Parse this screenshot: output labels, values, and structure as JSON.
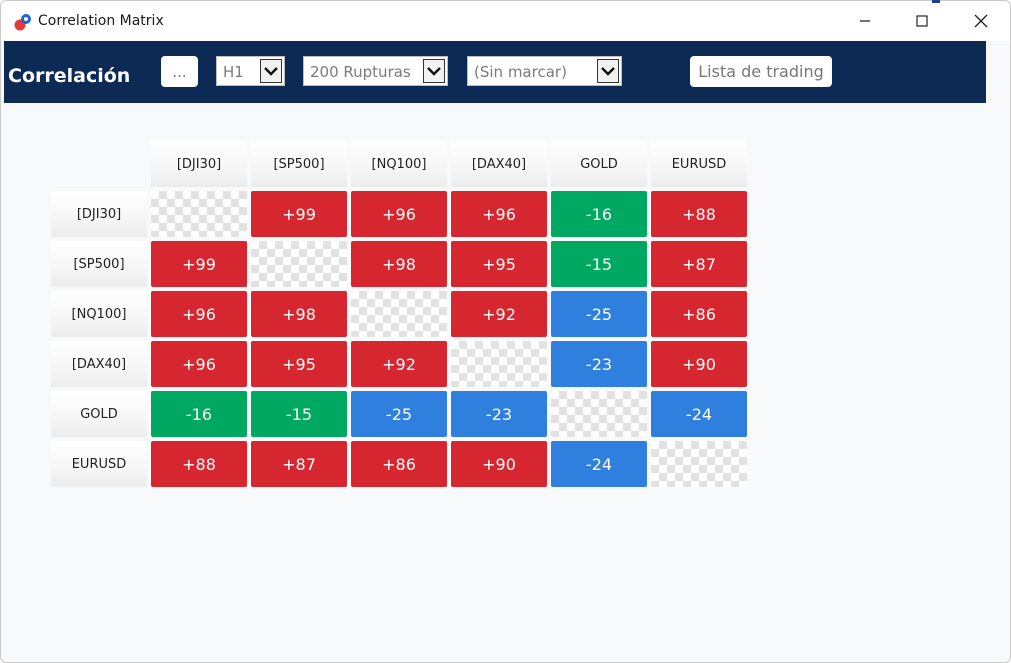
{
  "window": {
    "title": "Correlation Matrix",
    "icon": "app-dots-icon"
  },
  "toolbar": {
    "brand": "Correlación",
    "more_label": "...",
    "timeframe": "H1",
    "breakouts": "200 Rupturas",
    "mark": "(Sin marcar)",
    "trading_list": "Lista de trading"
  },
  "colors": {
    "positive": "#d6262f",
    "negative_weak": "#00a862",
    "negative_strong": "#2f7fdf",
    "toolbar_bg": "#0d2a55"
  },
  "matrix": {
    "columns": [
      "[DJI30]",
      "[SP500]",
      "[NQ100]",
      "[DAX40]",
      "GOLD",
      "EURUSD"
    ],
    "rows": [
      {
        "label": "[DJI30]",
        "cells": [
          null,
          "+99",
          "+96",
          "+96",
          "-16",
          "+88"
        ],
        "kinds": [
          "diag",
          "pos",
          "pos",
          "pos",
          "green",
          "pos"
        ]
      },
      {
        "label": "[SP500]",
        "cells": [
          "+99",
          null,
          "+98",
          "+95",
          "-15",
          "+87"
        ],
        "kinds": [
          "pos",
          "diag",
          "pos",
          "pos",
          "green",
          "pos"
        ]
      },
      {
        "label": "[NQ100]",
        "cells": [
          "+96",
          "+98",
          null,
          "+92",
          "-25",
          "+86"
        ],
        "kinds": [
          "pos",
          "pos",
          "diag",
          "pos",
          "blue",
          "pos"
        ]
      },
      {
        "label": "[DAX40]",
        "cells": [
          "+96",
          "+95",
          "+92",
          null,
          "-23",
          "+90"
        ],
        "kinds": [
          "pos",
          "pos",
          "pos",
          "diag",
          "blue",
          "pos"
        ]
      },
      {
        "label": "GOLD",
        "cells": [
          "-16",
          "-15",
          "-25",
          "-23",
          null,
          "-24"
        ],
        "kinds": [
          "green",
          "green",
          "blue",
          "blue",
          "diag",
          "blue"
        ]
      },
      {
        "label": "EURUSD",
        "cells": [
          "+88",
          "+87",
          "+86",
          "+90",
          "-24",
          null
        ],
        "kinds": [
          "pos",
          "pos",
          "pos",
          "pos",
          "blue",
          "diag"
        ]
      }
    ]
  }
}
